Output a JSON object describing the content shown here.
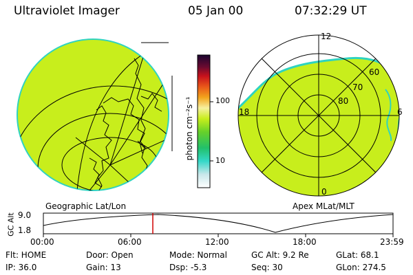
{
  "header": {
    "instrument": "Ultraviolet Imager",
    "date": "05 Jan 00",
    "time": "07:32:29 UT"
  },
  "colorbar": {
    "unit_label": "photon cm⁻²s⁻¹",
    "ticks": [
      "100",
      "10"
    ]
  },
  "left_map": {
    "caption": "Geographic Lat/Lon"
  },
  "polar_plot": {
    "caption": "Apex MLat/MLT",
    "mlt_labels": [
      "12",
      "18",
      "6",
      "0"
    ],
    "lat_labels": [
      "60",
      "70",
      "80"
    ]
  },
  "altitude_plot": {
    "ylabel": "GC Alt",
    "yticks": [
      "9.0",
      "1.8"
    ],
    "xticks": [
      "00:00",
      "06:00",
      "12:00",
      "18:00",
      "23:59"
    ],
    "current_time_marker": "07:32"
  },
  "status": {
    "row1": [
      {
        "key": "flt",
        "text": "Flt: HOME"
      },
      {
        "key": "door",
        "text": "Door: Open"
      },
      {
        "key": "mode",
        "text": "Mode: Normal"
      },
      {
        "key": "gcalt",
        "text": "GC Alt: 9.2 Re"
      },
      {
        "key": "glat",
        "text": "GLat: 68.1"
      }
    ],
    "row2": [
      {
        "key": "ip",
        "text": "IP: 36.0"
      },
      {
        "key": "gain",
        "text": "Gain: 13"
      },
      {
        "key": "dsp",
        "text": "Dsp:   -5.3"
      },
      {
        "key": "seq",
        "text": "Seq: 30"
      },
      {
        "key": "glon",
        "text": "GLon: 274.5"
      }
    ]
  },
  "colors": {
    "aurora_fill": "#c8ee1c",
    "aurora_edge": "#2fd3c0",
    "marker": "#d00000"
  }
}
